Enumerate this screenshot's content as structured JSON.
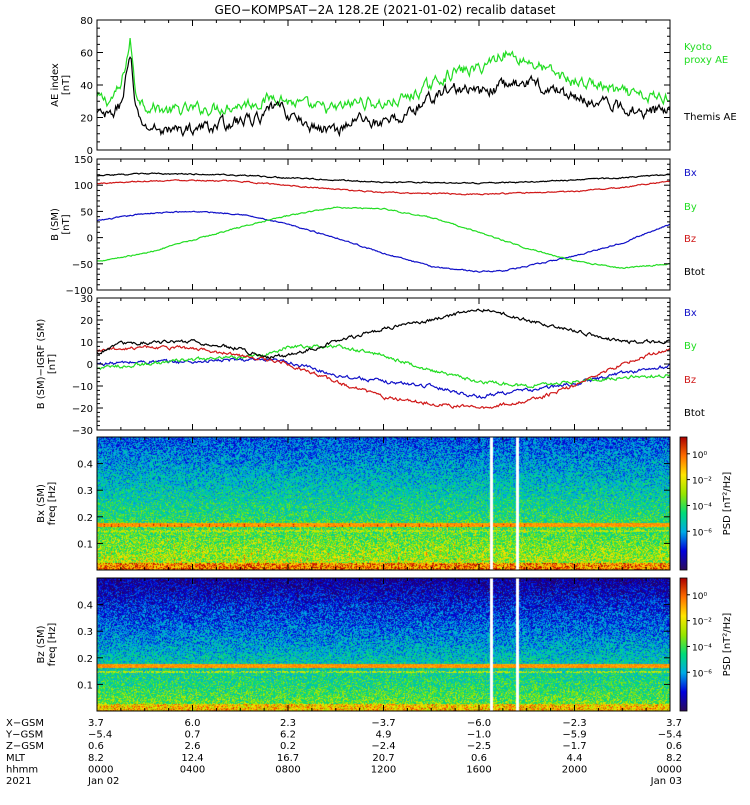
{
  "title": "GEO−KOMPSAT−2A 128.2E (2021-01-02) recalib dataset",
  "colors": {
    "black": "#000000",
    "green": "#22dd22",
    "blue": "#1010c8",
    "red": "#d01818",
    "cb_low": "#2b0a5a",
    "cb_high": "#aa0000"
  },
  "chart_data": [
    {
      "type": "line",
      "id": "ae",
      "ylabel_lines": [
        "AE index",
        "[nT]"
      ],
      "ylim": [
        0,
        80
      ],
      "yticks": [
        0,
        20,
        40,
        60,
        80
      ],
      "series": [
        {
          "name": "Kyoto proxy AE",
          "label_lines": [
            "Kyoto",
            "proxy AE"
          ],
          "color": "#22dd22",
          "x": [
            0,
            0.5,
            1,
            1.4,
            1.6,
            2,
            3,
            4,
            5,
            6,
            7,
            7.5,
            8,
            9,
            10,
            11,
            12,
            13,
            14,
            14.5,
            15,
            16,
            17,
            18,
            19,
            20,
            21,
            22,
            23,
            24
          ],
          "y": [
            32,
            30,
            38,
            68,
            36,
            28,
            24,
            25,
            26,
            28,
            30,
            34,
            30,
            26,
            25,
            30,
            28,
            32,
            40,
            45,
            48,
            50,
            60,
            55,
            48,
            42,
            40,
            35,
            32,
            33
          ]
        },
        {
          "name": "Themis AE",
          "label_lines": [
            "Themis AE"
          ],
          "color": "#000000",
          "x": [
            0,
            0.5,
            1,
            1.4,
            1.6,
            2,
            3,
            4,
            5,
            6,
            7,
            7.5,
            8,
            9,
            10,
            11,
            12,
            13,
            14,
            14.5,
            15,
            16,
            17,
            18,
            19,
            20,
            21,
            22,
            23,
            24
          ],
          "y": [
            22,
            20,
            28,
            60,
            24,
            14,
            12,
            13,
            15,
            18,
            20,
            28,
            22,
            14,
            12,
            20,
            16,
            22,
            32,
            36,
            38,
            35,
            40,
            42,
            38,
            32,
            30,
            26,
            24,
            25
          ]
        }
      ]
    },
    {
      "type": "line",
      "id": "bsm",
      "ylabel_lines": [
        "B (SM)",
        "[nT]"
      ],
      "ylim": [
        -100,
        150
      ],
      "yticks": [
        -100,
        -50,
        0,
        50,
        100,
        150
      ],
      "series": [
        {
          "name": "Bx",
          "color": "#1010c8",
          "x": [
            0,
            2,
            4,
            6,
            8,
            10,
            12,
            14,
            16,
            17,
            18,
            20,
            22,
            24
          ],
          "y": [
            32,
            46,
            50,
            45,
            25,
            0,
            -30,
            -55,
            -65,
            -63,
            -55,
            -35,
            -10,
            26
          ]
        },
        {
          "name": "By",
          "color": "#22dd22",
          "x": [
            0,
            2,
            4,
            6,
            8,
            10,
            12,
            14,
            16,
            18,
            20,
            22,
            24
          ],
          "y": [
            -45,
            -30,
            -5,
            20,
            42,
            58,
            55,
            38,
            10,
            -20,
            -45,
            -58,
            -50
          ]
        },
        {
          "name": "Bz",
          "color": "#d01818",
          "x": [
            0,
            2,
            4,
            6,
            8,
            10,
            12,
            14,
            16,
            18,
            20,
            22,
            24
          ],
          "y": [
            103,
            108,
            110,
            107,
            100,
            92,
            86,
            84,
            83,
            85,
            88,
            96,
            108
          ]
        },
        {
          "name": "Btot",
          "color": "#000000",
          "x": [
            0,
            2,
            4,
            6,
            8,
            10,
            12,
            14,
            16,
            18,
            20,
            22,
            24
          ],
          "y": [
            118,
            122,
            121,
            119,
            114,
            110,
            106,
            105,
            104,
            106,
            110,
            114,
            120
          ]
        }
      ]
    },
    {
      "type": "line",
      "id": "bigrf",
      "ylabel_lines": [
        "B (SM)−IGRF (SM)",
        "[nT]"
      ],
      "ylim": [
        -30,
        30
      ],
      "yticks": [
        -30,
        -20,
        -10,
        0,
        10,
        20,
        30
      ],
      "series": [
        {
          "name": "Bx",
          "color": "#1010c8",
          "x": [
            0,
            2,
            4,
            6,
            8,
            9,
            10,
            12,
            14,
            16,
            17,
            18,
            20,
            22,
            24
          ],
          "y": [
            0,
            1,
            1,
            2,
            1,
            -2,
            -5,
            -8,
            -10,
            -15,
            -13,
            -12,
            -9,
            -4,
            -1
          ]
        },
        {
          "name": "By",
          "color": "#22dd22",
          "x": [
            0,
            2,
            4,
            6,
            7,
            8,
            10,
            12,
            14,
            16,
            18,
            20,
            22,
            24
          ],
          "y": [
            -2,
            0,
            2,
            3,
            4,
            8,
            8,
            4,
            -3,
            -8,
            -10,
            -8,
            -6,
            -5
          ]
        },
        {
          "name": "Bz",
          "color": "#d01818",
          "x": [
            0,
            2,
            4,
            6,
            8,
            10,
            12,
            14,
            16,
            18,
            20,
            22,
            24
          ],
          "y": [
            6,
            8,
            7,
            4,
            0,
            -8,
            -15,
            -18,
            -20,
            -17,
            -10,
            0,
            7
          ]
        },
        {
          "name": "Btot",
          "color": "#000000",
          "x": [
            0,
            1,
            2,
            4,
            6,
            7,
            8,
            10,
            12,
            14,
            16,
            17,
            18,
            20,
            22,
            24
          ],
          "y": [
            5,
            9,
            10,
            10,
            7,
            3,
            4,
            10,
            16,
            20,
            25,
            23,
            20,
            15,
            10,
            10
          ]
        }
      ]
    },
    {
      "type": "heatmap",
      "id": "bx_spec",
      "ylabel_lines": [
        "Bx (SM)",
        "freq [Hz]"
      ],
      "ylim": [
        0,
        0.5
      ],
      "yticks": [
        0.1,
        0.2,
        0.3,
        0.4
      ],
      "ytick_labels": [
        "0.1",
        "0.2",
        "0.3",
        "0.4"
      ],
      "line_freq": 0.17,
      "gaps_hours": [
        16.5,
        17.6
      ],
      "colorbar": {
        "label": "PSD [nT²/Hz]",
        "ticks": [
          {
            "label": "10⁰",
            "value": 1
          },
          {
            "label": "10⁻²",
            "value": 0.01
          },
          {
            "label": "10⁻⁴",
            "value": 0.0001
          },
          {
            "label": "10⁻⁶",
            "value": 1e-06
          }
        ]
      }
    },
    {
      "type": "heatmap",
      "id": "bz_spec",
      "ylabel_lines": [
        "Bz (SM)",
        "freq [Hz]"
      ],
      "ylim": [
        0,
        0.5
      ],
      "yticks": [
        0.1,
        0.2,
        0.3,
        0.4
      ],
      "ytick_labels": [
        "0.1",
        "0.2",
        "0.3",
        "0.4"
      ],
      "line_freq": 0.17,
      "gaps_hours": [
        16.5,
        17.6
      ],
      "colorbar": {
        "label": "PSD [nT²/Hz]",
        "ticks": [
          {
            "label": "10⁰",
            "value": 1
          },
          {
            "label": "10⁻²",
            "value": 0.01
          },
          {
            "label": "10⁻⁴",
            "value": 0.0001
          },
          {
            "label": "10⁻⁶",
            "value": 1e-06
          }
        ]
      }
    }
  ],
  "time_axis": {
    "xlim_hours": [
      0,
      24
    ],
    "tick_hours": [
      0,
      4,
      8,
      12,
      16,
      20,
      24
    ],
    "rows": [
      {
        "name": "X−GSM",
        "values": [
          "3.7",
          "6.0",
          "2.3",
          "−3.7",
          "−6.0",
          "−2.3",
          "3.7"
        ]
      },
      {
        "name": "Y−GSM",
        "values": [
          "−5.4",
          "0.7",
          "6.2",
          "4.9",
          "−1.0",
          "−5.9",
          "−5.4"
        ]
      },
      {
        "name": "Z−GSM",
        "values": [
          "0.6",
          "2.6",
          "0.2",
          "−2.4",
          "−2.5",
          "−1.7",
          "0.6"
        ]
      },
      {
        "name": "MLT",
        "values": [
          "8.2",
          "12.4",
          "16.7",
          "20.7",
          "0.6",
          "4.4",
          "8.2"
        ]
      },
      {
        "name": "hhmm",
        "values": [
          "0000",
          "0400",
          "0800",
          "1200",
          "1600",
          "2000",
          "0000"
        ]
      },
      {
        "name": "2021",
        "values": [
          "Jan 02",
          "",
          "",
          "",
          "",
          "",
          "Jan 03"
        ]
      }
    ]
  }
}
